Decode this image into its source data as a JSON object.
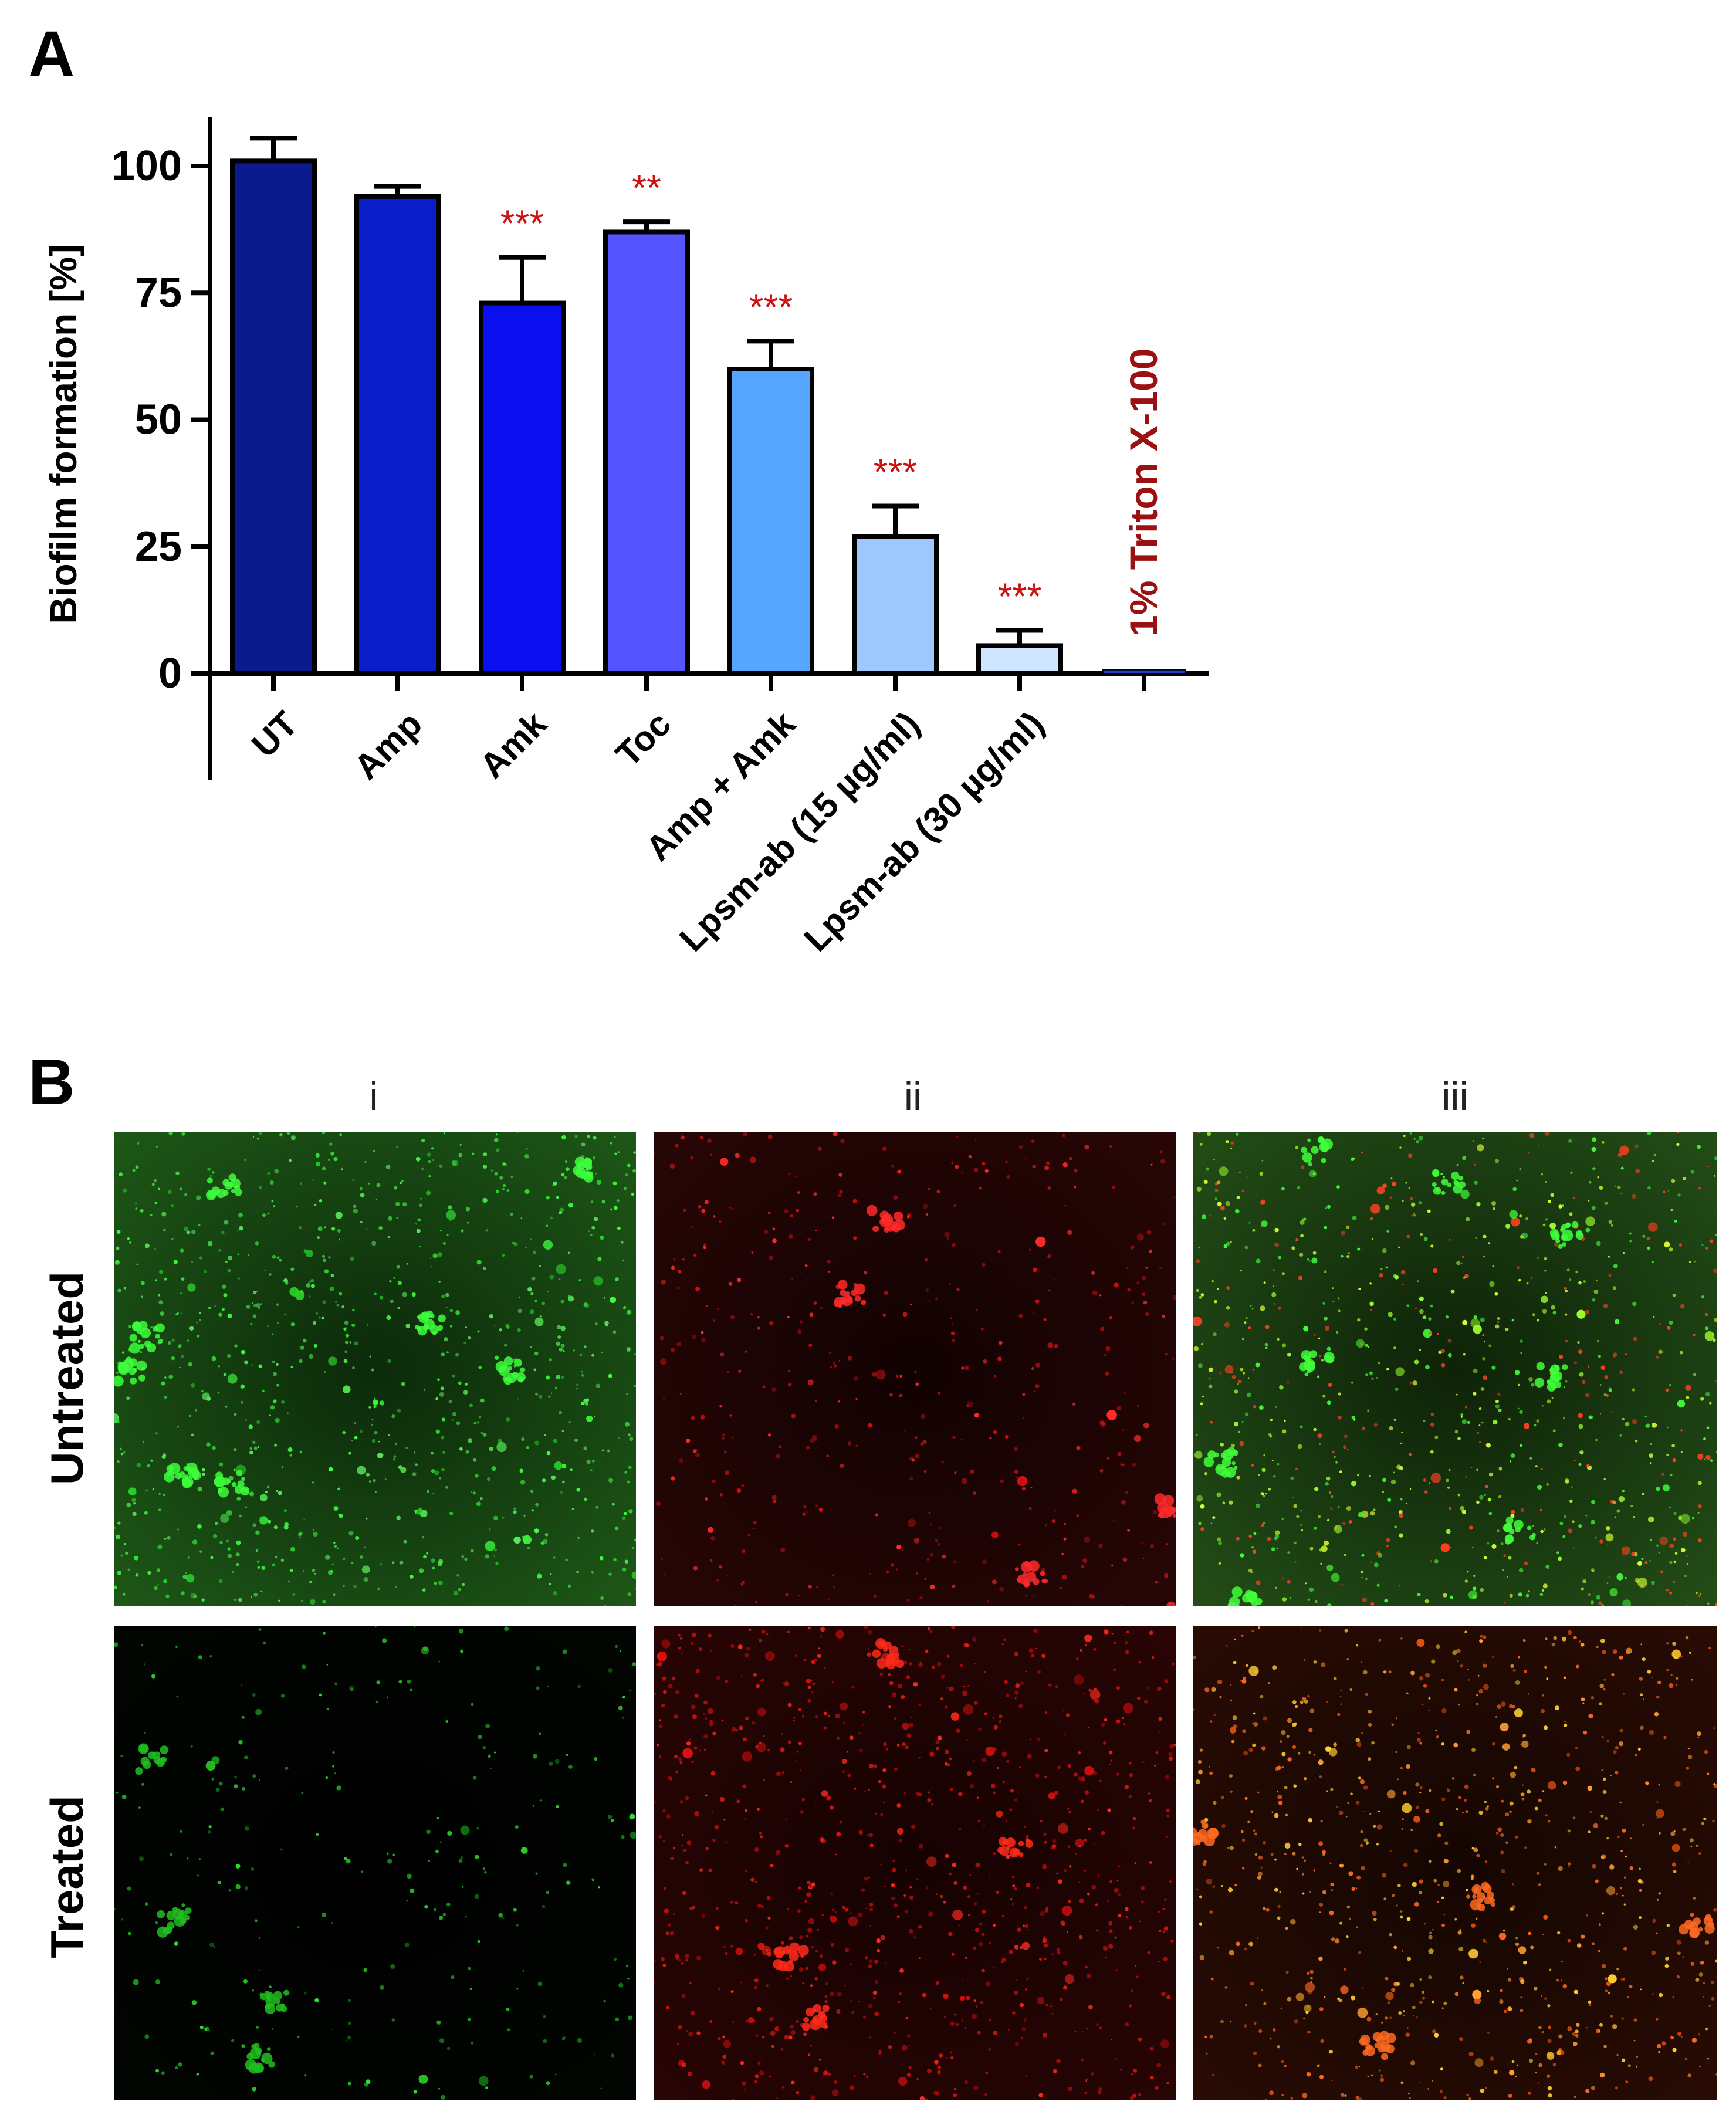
{
  "panels": {
    "a_label": "A",
    "b_label": "B"
  },
  "chart_data": {
    "type": "bar",
    "ylabel": "Biofilm formation [%]",
    "xlabel": "",
    "ylim": [
      0,
      110
    ],
    "yticks": [
      0,
      25,
      50,
      75,
      100
    ],
    "grid": false,
    "categories": [
      "UT",
      "Amp",
      "Amk",
      "Toc",
      "Amp + Amk",
      "Lpsm-ab (15 µg/ml)",
      "Lpsm-ab (30 µg/ml)",
      ""
    ],
    "values": [
      101,
      94,
      73,
      87,
      60,
      27,
      5.5,
      0.5
    ],
    "errors": [
      4.5,
      2,
      9,
      2,
      5.5,
      6,
      3,
      0
    ],
    "significance": [
      "",
      "",
      "***",
      "**",
      "***",
      "***",
      "***",
      ""
    ],
    "bar_colors": [
      "#0b1a8c",
      "#0a1fc9",
      "#0b0ff0",
      "#5555ff",
      "#56a5ff",
      "#9ec9ff",
      "#cfe4ff",
      "#1f3cc8"
    ],
    "significance_color": "#cc1111",
    "annotation": {
      "text": "1% Triton X-100",
      "color": "#9b1010",
      "category_index": 7
    }
  },
  "microscopy": {
    "columns": [
      "i",
      "ii",
      "iii"
    ],
    "rows": [
      "Untreated",
      "Treated"
    ],
    "images": [
      [
        "green-stain",
        "red-stain",
        "merged-stain"
      ],
      [
        "green-stain",
        "red-stain",
        "merged-stain"
      ]
    ]
  }
}
